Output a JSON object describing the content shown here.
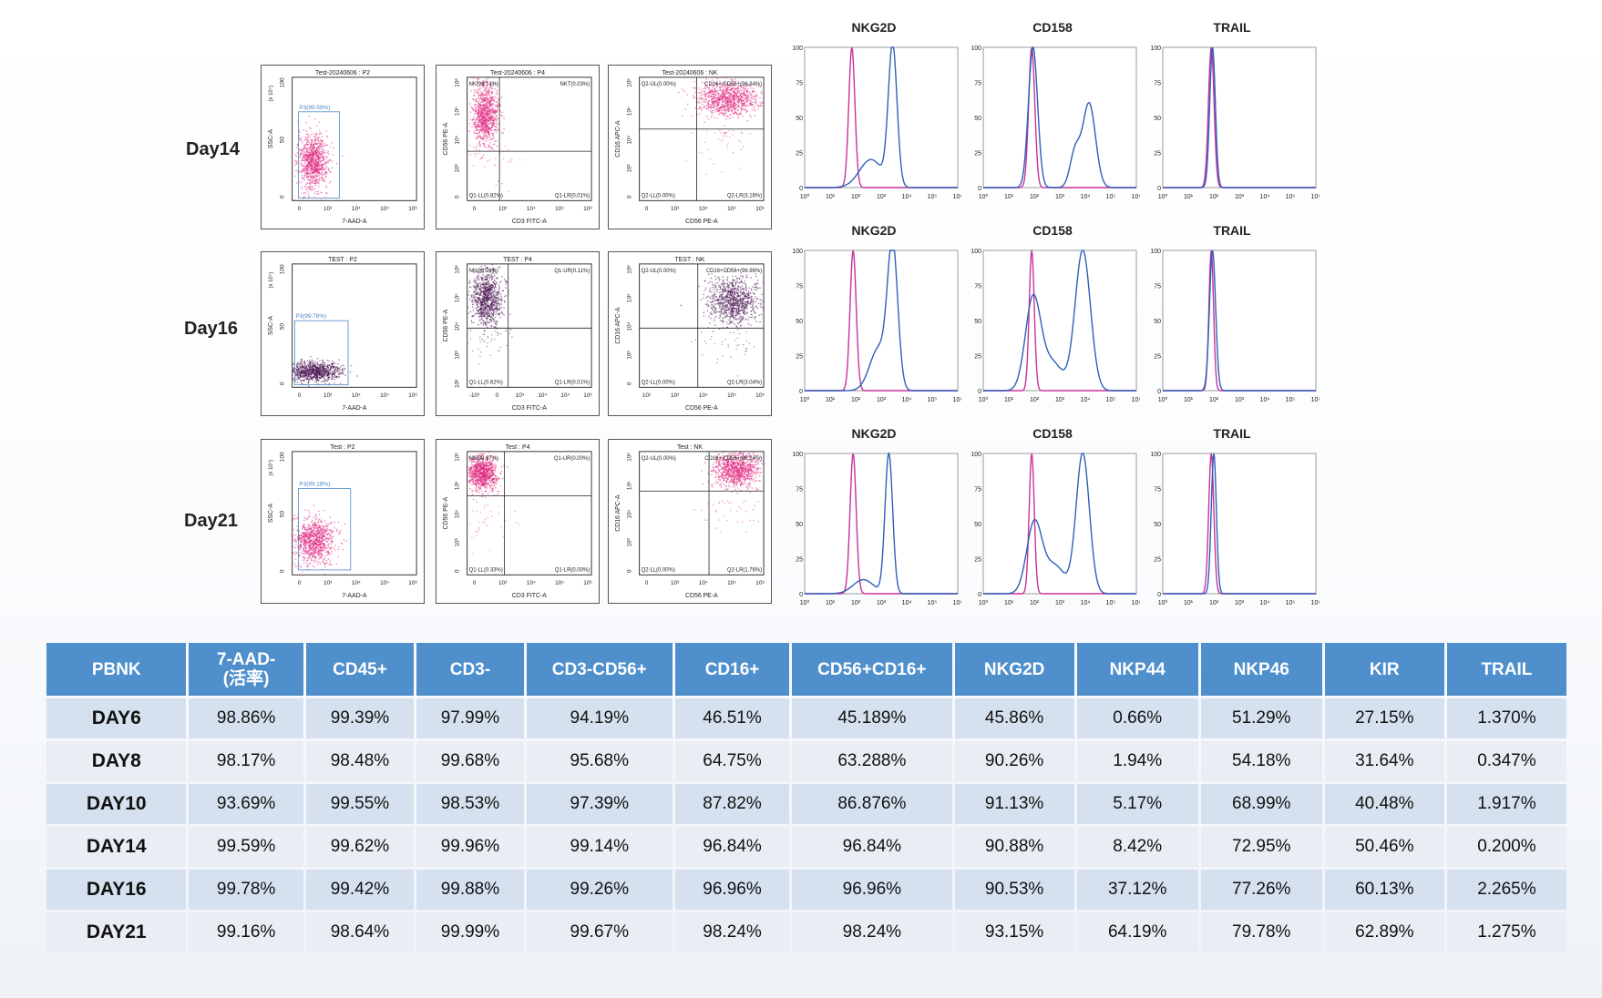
{
  "days": [
    "Day14",
    "Day16",
    "Day21"
  ],
  "colors": {
    "day14_dots": "#e0287f",
    "day16_dots": "#4a1552",
    "day21_dots": "#e0287f",
    "gate": "#4a86c8",
    "isotype": "#c8329a",
    "stain": "#2f5fb8",
    "header_bg": "#4f8fcc"
  },
  "scatter": [
    [
      {
        "title": "Test-20240606 : P2",
        "xlabel": "7-AAD-A",
        "ylabel": "SSC-A",
        "yunit": "(x 10⁴)",
        "gate": "P3(99.59%)",
        "xticks": [
          "0",
          "10³",
          "10⁴",
          "10⁵",
          "10⁶"
        ],
        "yticks": [
          "0",
          "50",
          "100"
        ]
      },
      {
        "title": "Test-20240606 : P4",
        "xlabel": "CD3 FITC-A",
        "ylabel": "CD56 PE-A",
        "q": [
          "NK(99.14%)",
          "NKT(0.03%)",
          "Q1-LL(0.82%)",
          "Q1-LR(0.01%)"
        ],
        "xticks": [
          "0",
          "10³",
          "10⁴",
          "10⁵",
          "10⁶"
        ],
        "yticks": [
          "0",
          "10³",
          "10⁴",
          "10⁵",
          "10⁶"
        ]
      },
      {
        "title": "Test-20240606 : NK",
        "xlabel": "CD56 PE-A",
        "ylabel": "CD16 APC-A",
        "q": [
          "Q2-UL(0.00%)",
          "CD16+ CD56+(96.84%)",
          "Q2-LL(0.00%)",
          "Q2-LR(3.16%)"
        ],
        "xticks": [
          "0",
          "10³",
          "10⁴",
          "10⁵",
          "10⁶"
        ],
        "yticks": [
          "0",
          "10³",
          "10⁴",
          "10⁵",
          "10⁶"
        ]
      }
    ],
    [
      {
        "title": "TEST : P2",
        "xlabel": "7-AAD-A",
        "ylabel": "SSC-A",
        "yunit": "(x 10⁴)",
        "gate": "P3(99.78%)",
        "xticks": [
          "0",
          "10³",
          "10⁴",
          "10⁵",
          "10⁶"
        ],
        "yticks": [
          "0",
          "50",
          "100"
        ]
      },
      {
        "title": "TEST : P4",
        "xlabel": "CD3 FITC-A",
        "ylabel": "CD56 PE-A",
        "q": [
          "NK(99.26%)",
          "Q1-UR(0.11%)",
          "Q1-LL(0.62%)",
          "Q1-LR(0.01%)"
        ],
        "xticks": [
          "-10³",
          "0",
          "10³",
          "10⁴",
          "10⁵",
          "10⁶"
        ],
        "yticks": [
          "10²",
          "10³",
          "10⁴",
          "10⁵",
          "10⁶"
        ]
      },
      {
        "title": "TEST : NK",
        "xlabel": "CD56 PE-A",
        "ylabel": "CD16 APC-A",
        "q": [
          "Q2-UL(0.00%)",
          "CD16+CD56+(96.96%)",
          "Q2-LL(0.00%)",
          "Q2-LR(3.04%)"
        ],
        "xticks": [
          "10²",
          "10³",
          "10⁴",
          "10⁵",
          "10⁶"
        ],
        "yticks": [
          "0",
          "10³",
          "10⁴",
          "10⁵",
          "10⁶"
        ]
      }
    ],
    [
      {
        "title": "Test : P2",
        "xlabel": "7-AAD-A",
        "ylabel": "SSC-A",
        "yunit": "(x 10⁴)",
        "gate": "P3(99.16%)",
        "xticks": [
          "0",
          "10³",
          "10⁴",
          "10⁵",
          "10⁶"
        ],
        "yticks": [
          "0",
          "50",
          "100"
        ]
      },
      {
        "title": "Test : P4",
        "xlabel": "CD3 FITC-A",
        "ylabel": "CD56 PE-A",
        "q": [
          "NK(99.67%)",
          "Q1-UR(0.00%)",
          "Q1-LL(0.33%)",
          "Q1-LR(0.00%)"
        ],
        "xticks": [
          "0",
          "10³",
          "10⁴",
          "10⁵",
          "10⁶"
        ],
        "yticks": [
          "0",
          "10³",
          "10⁴",
          "10⁵",
          "10⁶"
        ]
      },
      {
        "title": "Test : NK",
        "xlabel": "CD56 PE-A",
        "ylabel": "CD16 APC-A",
        "q": [
          "Q2-UL(0.00%)",
          "CD16+ CD56+(98.24%)",
          "Q2-LL(0.00%)",
          "Q2-LR(1.76%)"
        ],
        "xticks": [
          "0",
          "10³",
          "10⁴",
          "10⁵",
          "10⁶"
        ],
        "yticks": [
          "0",
          "10³",
          "10⁴",
          "10⁵",
          "10⁶"
        ]
      }
    ]
  ],
  "histograms": {
    "titles": [
      [
        "NKG2D",
        "CD158",
        "TRAIL"
      ],
      [
        "NKG2D",
        "CD158",
        "TRAIL"
      ],
      [
        "NKG2D",
        "CD158",
        "TRAIL"
      ]
    ],
    "yticks": [
      "0",
      "25",
      "50",
      "75",
      "100"
    ],
    "xticks": [
      "10⁰",
      "10¹",
      "10²",
      "10³",
      "10⁴",
      "10⁵",
      "10⁶"
    ]
  },
  "table": {
    "headers": [
      "PBNK",
      "7-AAD-\n(活率)",
      "CD45+",
      "CD3-",
      "CD3-CD56+",
      "CD16+",
      "CD56+CD16+",
      "NKG2D",
      "NKP44",
      "NKP46",
      "KIR",
      "TRAIL"
    ],
    "rows": [
      [
        "DAY6",
        "98.86%",
        "99.39%",
        "97.99%",
        "94.19%",
        "46.51%",
        "45.189%",
        "45.86%",
        "0.66%",
        "51.29%",
        "27.15%",
        "1.370%"
      ],
      [
        "DAY8",
        "98.17%",
        "98.48%",
        "99.68%",
        "95.68%",
        "64.75%",
        "63.288%",
        "90.26%",
        "1.94%",
        "54.18%",
        "31.64%",
        "0.347%"
      ],
      [
        "DAY10",
        "93.69%",
        "99.55%",
        "98.53%",
        "97.39%",
        "87.82%",
        "86.876%",
        "91.13%",
        "5.17%",
        "68.99%",
        "40.48%",
        "1.917%"
      ],
      [
        "DAY14",
        "99.59%",
        "99.62%",
        "99.96%",
        "99.14%",
        "96.84%",
        "96.84%",
        "90.88%",
        "8.42%",
        "72.95%",
        "50.46%",
        "0.200%"
      ],
      [
        "DAY16",
        "99.78%",
        "99.42%",
        "99.88%",
        "99.26%",
        "96.96%",
        "96.96%",
        "90.53%",
        "37.12%",
        "77.26%",
        "60.13%",
        "2.265%"
      ],
      [
        "DAY21",
        "99.16%",
        "98.64%",
        "99.99%",
        "99.67%",
        "98.24%",
        "98.24%",
        "93.15%",
        "64.19%",
        "79.78%",
        "62.89%",
        "1.275%"
      ]
    ]
  }
}
